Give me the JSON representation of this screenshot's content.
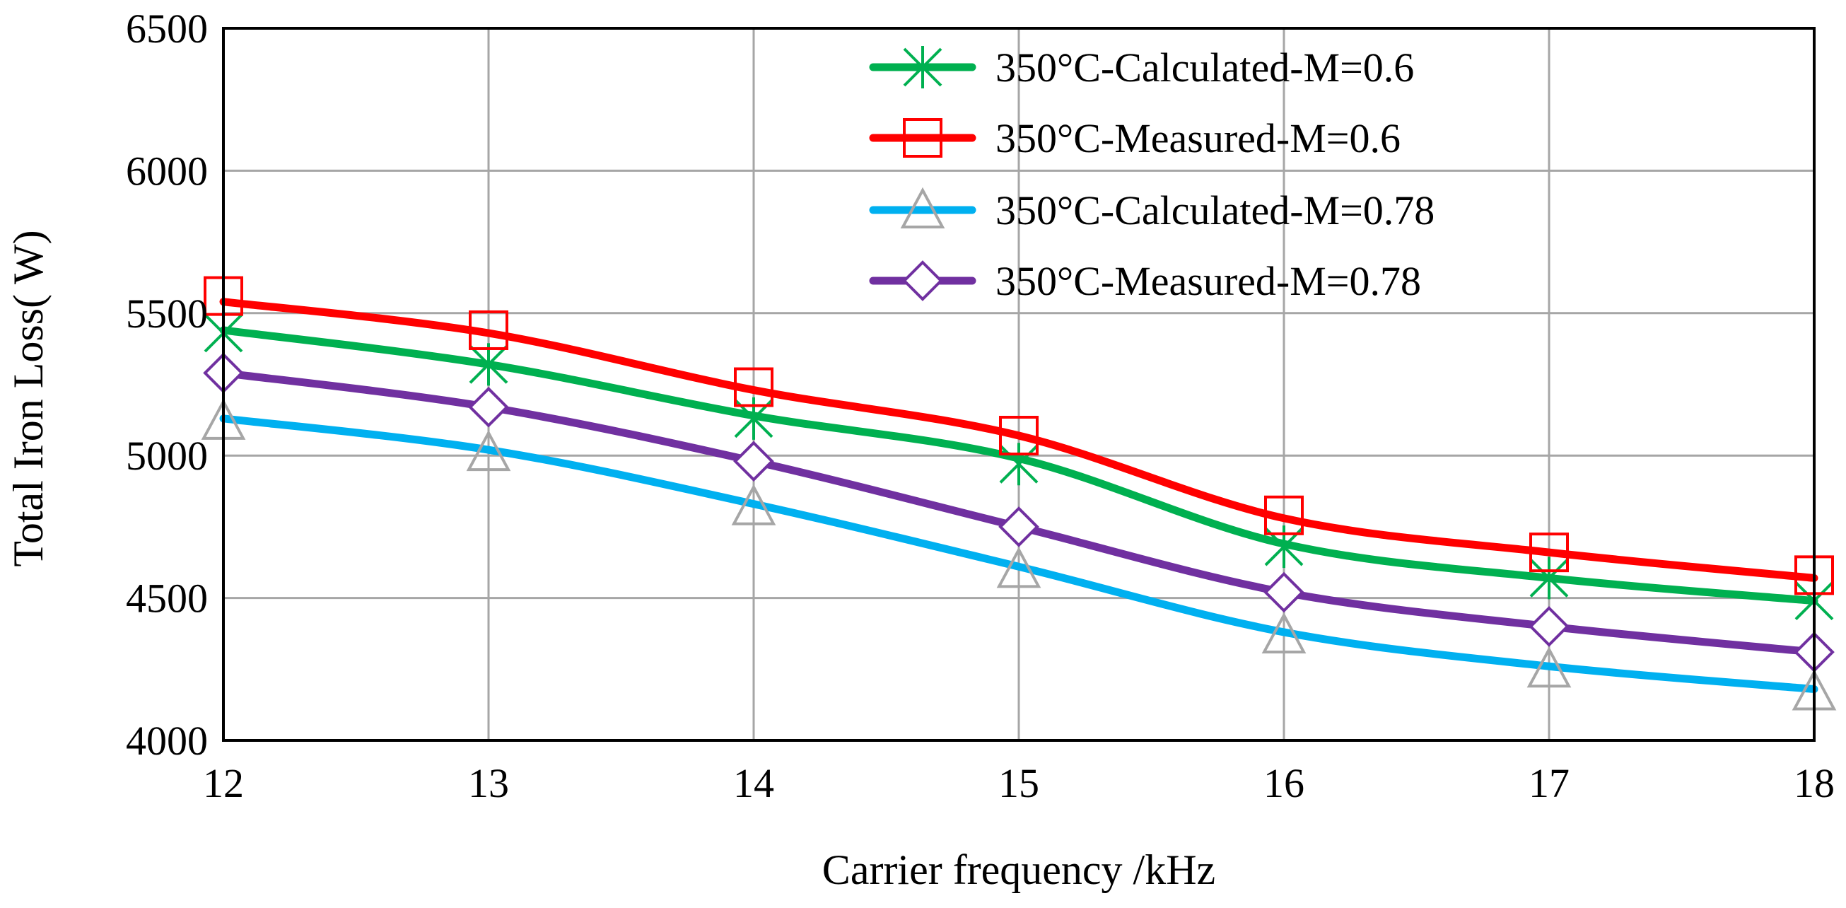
{
  "chart_data": {
    "type": "line",
    "title": "",
    "xlabel": "Carrier frequency /kHz",
    "ylabel": "Total Iron Loss( W)",
    "xlim": [
      12,
      18
    ],
    "ylim": [
      4000,
      6500
    ],
    "x_ticks": [
      "12",
      "13",
      "14",
      "15",
      "16",
      "17",
      "18"
    ],
    "y_ticks": [
      "4000",
      "4500",
      "5000",
      "5500",
      "6000",
      "6500"
    ],
    "grid": true,
    "legend_position": "top-center",
    "x": [
      12,
      13,
      14,
      15,
      16,
      17,
      18
    ],
    "series": [
      {
        "name": "350°C-Calculated-M=0.6",
        "color": "#00b050",
        "marker": "asterisk",
        "marker_color": "#00b050",
        "values": [
          5430,
          5320,
          5130,
          4970,
          4680,
          4570,
          4490
        ],
        "curve": [
          5440,
          5320,
          5140,
          4990,
          4690,
          4570,
          4490
        ]
      },
      {
        "name": "350°C-Measured-M=0.6",
        "color": "#ff0000",
        "marker": "square",
        "marker_color": "#ff0000",
        "values": [
          5560,
          5440,
          5240,
          5070,
          4790,
          4660,
          4580
        ],
        "curve": [
          5540,
          5430,
          5230,
          5070,
          4780,
          4660,
          4570
        ]
      },
      {
        "name": "350°C-Calculated-M=0.78",
        "color": "#00b0f0",
        "marker": "triangle",
        "marker_color": "#a6a6a6",
        "values": [
          5120,
          5010,
          4820,
          4600,
          4370,
          4250,
          4170
        ],
        "curve": [
          5130,
          5020,
          4830,
          4610,
          4380,
          4260,
          4180
        ]
      },
      {
        "name": "350°C-Measured-M=0.78",
        "color": "#7030a0",
        "marker": "diamond",
        "marker_color": "#7030a0",
        "values": [
          5290,
          5170,
          4980,
          4750,
          4520,
          4400,
          4310
        ],
        "curve": [
          5290,
          5170,
          4980,
          4750,
          4520,
          4400,
          4310
        ]
      }
    ]
  }
}
